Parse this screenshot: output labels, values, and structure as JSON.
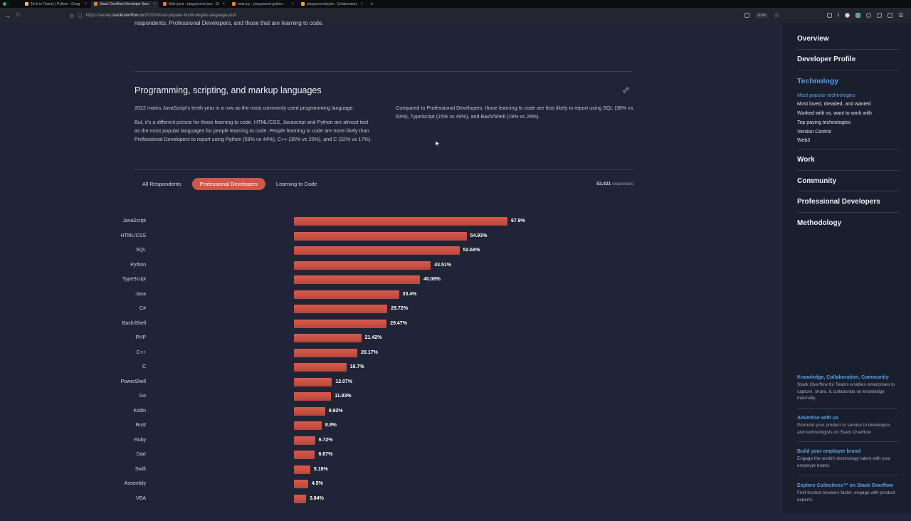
{
  "browser": {
    "tabs": [
      {
        "label": "Tech in Twenty | Python - Goog",
        "color": "#f4c542",
        "active": false
      },
      {
        "label": "Stack Overflow Developer Surv",
        "color": "#f48024",
        "active": true
      },
      {
        "label": "Main.java - playground-java - Gi",
        "color": "#f48024",
        "active": false
      },
      {
        "label": "main.py - playground-python - ",
        "color": "#f48024",
        "active": false
      },
      {
        "label": "playground.ipynb - Colaboratory",
        "color": "#f9ab00",
        "active": false
      }
    ],
    "url_prefix": "https://survey.",
    "url_host": "stackoverflow.co",
    "url_path": "/2022/#most-popular-technologies-language-prof",
    "zoom": "110%"
  },
  "content": {
    "intro_clip": "respondents, Professional Developers, and those that are learning to code.",
    "section_title": "Programming, scripting, and markup languages",
    "left_p1": "2022 marks JavaScript's tenth year in a row as the most commonly used programming language.",
    "left_p2": "But, it's a different picture for those learning to code. HTML/CSS, Javascript and Python are almost tied as the most popular languages for people learning to code. People learning to code are more likely than Professional Developers to report using Python (58% vs 44%), C++ (35% vs 20%), and C (32% vs 17%).",
    "right_p1": "Compared to Professional Developers, those learning to code are less likely to report using SQL (38% vs 53%), TypeScript (15% vs 40%), and Bash/Shell (19% vs 29%).",
    "filter_tabs": [
      "All Respondents",
      "Professional Developers",
      "Learning to Code"
    ],
    "responses_count": "53,421",
    "responses_label": "responses"
  },
  "chart_data": {
    "type": "bar",
    "orientation": "horizontal",
    "categories": [
      "JavaScript",
      "HTML/CSS",
      "SQL",
      "Python",
      "TypeScript",
      "Java",
      "C#",
      "Bash/Shell",
      "PHP",
      "C++",
      "C",
      "PowerShell",
      "Go",
      "Kotlin",
      "Rust",
      "Ruby",
      "Dart",
      "Swift",
      "Assembly",
      "VBA"
    ],
    "values": [
      67.9,
      54.93,
      52.64,
      43.51,
      40.08,
      33.4,
      29.72,
      29.47,
      21.42,
      20.17,
      16.7,
      12.07,
      11.83,
      9.92,
      8.8,
      6.72,
      6.67,
      5.18,
      4.5,
      3.84
    ],
    "value_labels": [
      "67.9%",
      "54.93%",
      "52.64%",
      "43.51%",
      "40.08%",
      "33.4%",
      "29.72%",
      "29.47%",
      "21.42%",
      "20.17%",
      "16.7%",
      "12.07%",
      "11.83%",
      "9.92%",
      "8.8%",
      "6.72%",
      "6.67%",
      "5.18%",
      "4.5%",
      "3.84%"
    ],
    "series_name": "Professional Developers",
    "bar_color": "#cc5246",
    "xlim": [
      0,
      100
    ]
  },
  "sidebar": {
    "sections": [
      "Overview",
      "Developer Profile"
    ],
    "active_section": "Technology",
    "subitems": [
      "Most popular technologies",
      "Most loved, dreaded, and wanted",
      "Worked with vs. want to work with",
      "Top paying technologies",
      "Version Control",
      "Web3"
    ],
    "more_sections": [
      "Work",
      "Community",
      "Professional Developers",
      "Methodology"
    ],
    "promos": [
      {
        "title": "Knowledge, Collaboration, Community",
        "text": "Stack Overflow for Teams enables enterprises to capture, share, & collaborate on knowledge internally."
      },
      {
        "title": "Advertise with us",
        "text": "Promote your product or service to developers and technologists on Stack Overflow."
      },
      {
        "title": "Build your employer brand",
        "text": "Engage the world's technology talent with your employer brand."
      },
      {
        "title": "Explore Collectives™ on Stack Overflow",
        "text": "Find trusted answers faster, engage with product experts."
      }
    ],
    "accent": "#5aa0e0"
  }
}
